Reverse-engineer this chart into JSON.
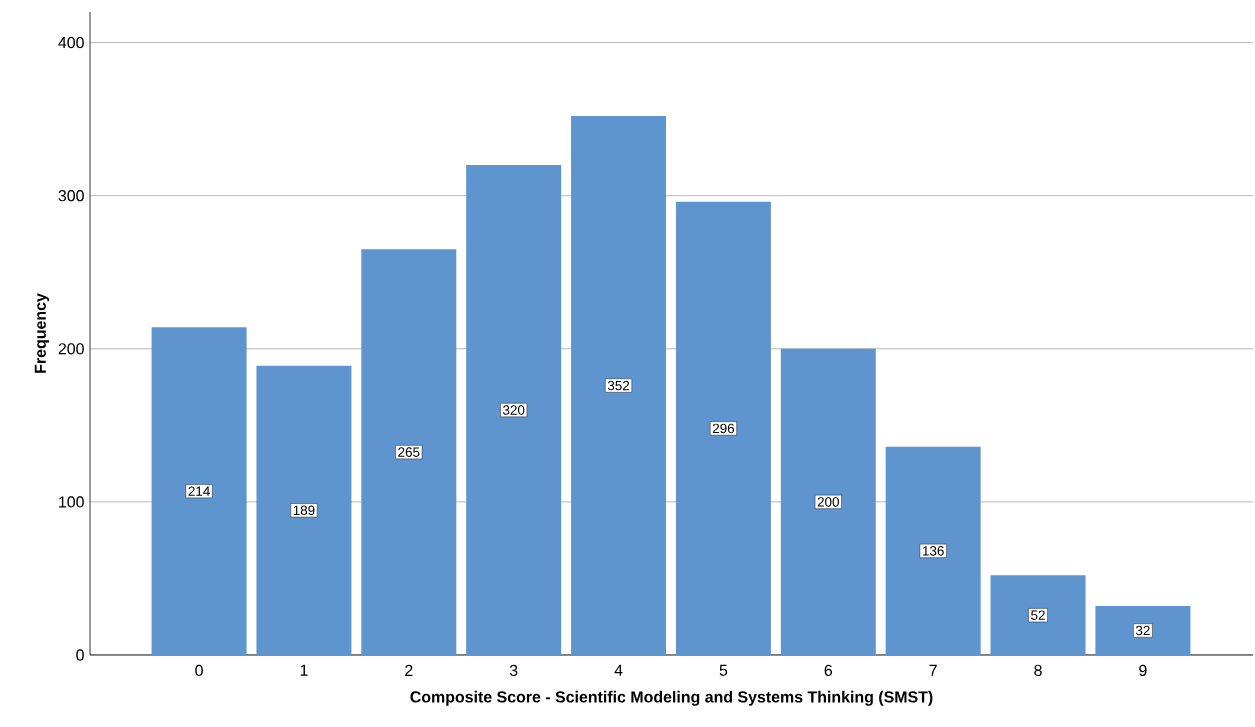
{
  "chart_data": {
    "type": "bar",
    "xlabel": "Composite Score - Scientific Modeling and Systems Thinking (SMST)",
    "ylabel": "Frequency",
    "categories": [
      "0",
      "1",
      "2",
      "3",
      "4",
      "5",
      "6",
      "7",
      "8",
      "9"
    ],
    "values": [
      214,
      189,
      265,
      320,
      352,
      296,
      200,
      136,
      52,
      32
    ],
    "color": "#5f95cf",
    "ylim": [
      0,
      420
    ],
    "yticks": [
      0,
      100,
      200,
      300,
      400
    ],
    "grid": "y",
    "data_labels": true
  }
}
